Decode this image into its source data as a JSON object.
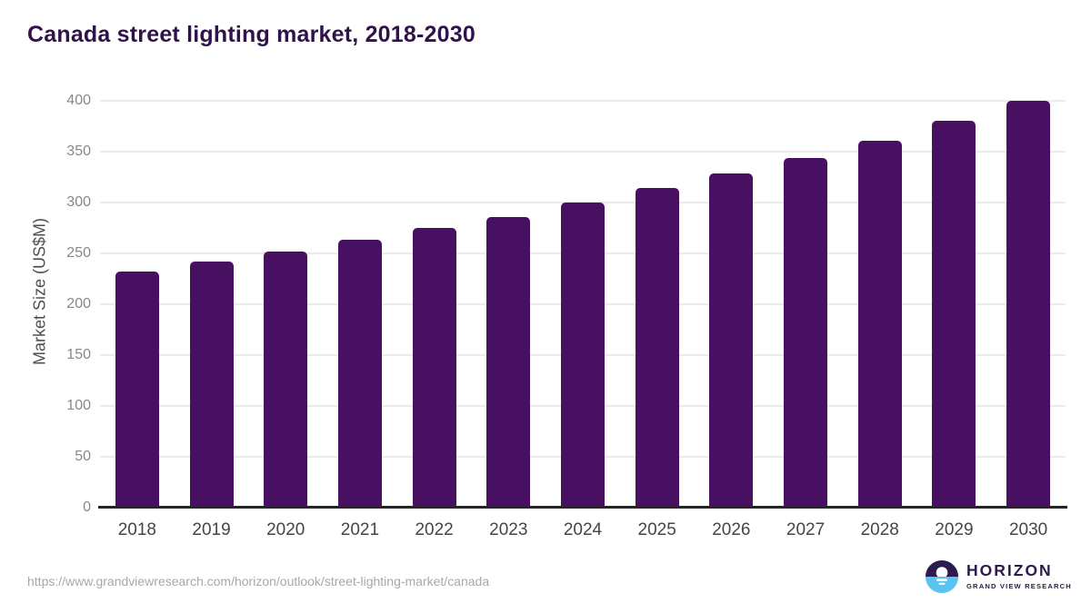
{
  "title": "Canada street lighting market, 2018-2030",
  "chart_data": {
    "type": "bar",
    "title": "Canada street lighting market, 2018-2030",
    "categories": [
      "2018",
      "2019",
      "2020",
      "2021",
      "2022",
      "2023",
      "2024",
      "2025",
      "2026",
      "2027",
      "2028",
      "2029",
      "2030"
    ],
    "values": [
      232,
      242,
      252,
      263,
      275,
      286,
      300,
      314,
      329,
      344,
      361,
      380,
      400
    ],
    "xlabel": "",
    "ylabel": "Market Size (US$M)",
    "ylim": [
      0,
      400
    ],
    "yticks": [
      0,
      50,
      100,
      150,
      200,
      250,
      300,
      350,
      400
    ],
    "grid": true,
    "legend": false,
    "bar_color": "#471061"
  },
  "colors": {
    "bar": "#471061",
    "title_text": "#31134b",
    "axis_line": "#262626",
    "gridline": "#ebebeb",
    "y_tick_text": "#888888",
    "x_tick_text": "#454545",
    "url_text": "#a8a8a8",
    "logo_purple": "#2d1b4e",
    "logo_blue": "#5bc3f0"
  },
  "footer": {
    "source_url": "https://www.grandviewresearch.com/horizon/outlook/street-lighting-market/canada",
    "logo": {
      "name": "HORIZON",
      "subtitle": "GRAND VIEW RESEARCH",
      "icon": "horizon-sun-icon"
    }
  }
}
